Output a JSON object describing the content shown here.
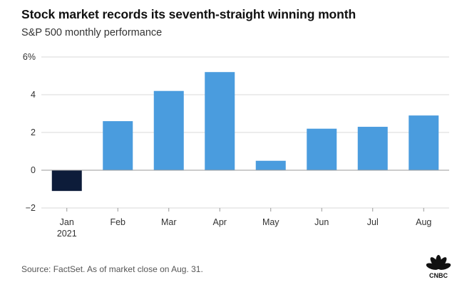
{
  "header": {
    "title": "Stock market records its seventh-straight winning month",
    "subtitle": "S&P 500 monthly performance"
  },
  "footer": {
    "source": "Source: FactSet. As of market close on Aug. 31.",
    "logo_text": "CNBC"
  },
  "chart_data": {
    "type": "bar",
    "title": "Stock market records its seventh-straight winning month",
    "subtitle": "S&P 500 monthly performance",
    "categories": [
      "Jan",
      "Feb",
      "Mar",
      "Apr",
      "May",
      "Jun",
      "Jul",
      "Aug"
    ],
    "year_label": "2021",
    "values": [
      -1.1,
      2.6,
      4.2,
      5.2,
      0.5,
      2.2,
      2.3,
      2.9
    ],
    "ylim": [
      -2,
      6
    ],
    "yticks": [
      -2,
      0,
      2,
      4,
      6
    ],
    "ytick_labels": [
      "−2",
      "0",
      "2",
      "4",
      "6%"
    ],
    "xlabel": "",
    "ylabel": "",
    "grid": true,
    "colors": {
      "positive": "#4a9cde",
      "negative": "#0d1c3a",
      "grid": "#d9d9d9",
      "baseline": "#999999"
    }
  },
  "colors": {
    "text": "#222222",
    "muted": "#555555"
  }
}
